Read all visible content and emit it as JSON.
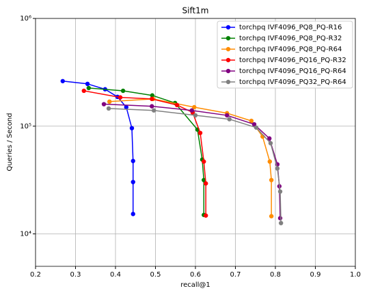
{
  "chart_data": {
    "type": "line",
    "title": "Sift1m",
    "x_label": "recall@1",
    "y_label": "Queries / Second",
    "log_y": true,
    "grid": true,
    "legend": "upper right",
    "xlim": [
      0.2,
      1.0
    ],
    "xticks": [
      {
        "value": 0.2,
        "label": "0.2"
      },
      {
        "value": 0.3,
        "label": "0.3"
      },
      {
        "value": 0.4,
        "label": "0.4"
      },
      {
        "value": 0.5,
        "label": "0.5"
      },
      {
        "value": 0.6,
        "label": "0.6"
      },
      {
        "value": 0.7,
        "label": "0.7"
      },
      {
        "value": 0.8,
        "label": "0.8"
      },
      {
        "value": 0.9,
        "label": "0.9"
      },
      {
        "value": 1.0,
        "label": "1.0"
      }
    ],
    "ylim": [
      5000,
      1000000
    ],
    "yticks": [
      {
        "value": 10000,
        "label": "10⁴"
      },
      {
        "value": 100000,
        "label": "10⁵"
      },
      {
        "value": 1000000,
        "label": "10⁶"
      }
    ],
    "series": [
      {
        "name": "torchpq IVF4096_PQ8_PQ-R16",
        "color": "#0000ff",
        "x": [
          0.268,
          0.33,
          0.374,
          0.405,
          0.427,
          0.441,
          0.444,
          0.444,
          0.444
        ],
        "values": [
          262000,
          247000,
          220000,
          187000,
          150000,
          95800,
          47500,
          30300,
          15300
        ]
      },
      {
        "name": "torchpq IVF4096_PQ8_PQ-R32",
        "color": "#008000",
        "x": [
          0.333,
          0.419,
          0.492,
          0.549,
          0.605,
          0.617,
          0.621,
          0.621
        ],
        "values": [
          226000,
          213000,
          193000,
          164000,
          93000,
          49000,
          31600,
          15000
        ]
      },
      {
        "name": "torchpq IVF4096_PQ8_PQ-R64",
        "color": "#ff8c00",
        "x": [
          0.385,
          0.494,
          0.597,
          0.679,
          0.74,
          0.768,
          0.786,
          0.79,
          0.79
        ],
        "values": [
          169000,
          179000,
          150000,
          132000,
          112000,
          80000,
          46900,
          31600,
          14600
        ]
      },
      {
        "name": "torchpq IVF4096_PQ16_PQ-R32",
        "color": "#ff0000",
        "x": [
          0.321,
          0.412,
          0.491,
          0.554,
          0.593,
          0.612,
          0.621,
          0.626,
          0.626
        ],
        "values": [
          213000,
          185000,
          179000,
          157000,
          134000,
          86500,
          46900,
          29400,
          14800
        ]
      },
      {
        "name": "torchpq IVF4096_PQ16_PQ-R64",
        "color": "#800080",
        "x": [
          0.371,
          0.491,
          0.591,
          0.679,
          0.747,
          0.785,
          0.805,
          0.81,
          0.812
        ],
        "values": [
          160000,
          153000,
          140000,
          126000,
          104000,
          76900,
          44200,
          27700,
          14000
        ]
      },
      {
        "name": "torchpq IVF4096_PQ32_PQ-R64",
        "color": "#808080",
        "x": [
          0.383,
          0.496,
          0.6,
          0.685,
          0.752,
          0.788,
          0.805,
          0.812,
          0.814
        ],
        "values": [
          146000,
          140000,
          126000,
          116000,
          97100,
          69500,
          40500,
          24700,
          12600
        ]
      }
    ]
  }
}
